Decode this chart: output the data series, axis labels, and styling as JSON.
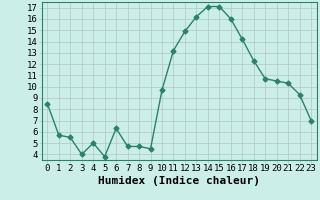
{
  "x": [
    0,
    1,
    2,
    3,
    4,
    5,
    6,
    7,
    8,
    9,
    10,
    11,
    12,
    13,
    14,
    15,
    16,
    17,
    18,
    19,
    20,
    21,
    22,
    23
  ],
  "y": [
    8.5,
    5.7,
    5.5,
    4.0,
    5.0,
    3.8,
    6.3,
    4.7,
    4.7,
    4.5,
    9.7,
    13.2,
    14.9,
    16.2,
    17.1,
    17.1,
    16.0,
    14.2,
    12.3,
    10.7,
    10.5,
    10.3,
    9.3,
    7.0
  ],
  "xlabel": "Humidex (Indice chaleur)",
  "ylim": [
    3.5,
    17.5
  ],
  "xlim": [
    -0.5,
    23.5
  ],
  "yticks": [
    4,
    5,
    6,
    7,
    8,
    9,
    10,
    11,
    12,
    13,
    14,
    15,
    16,
    17
  ],
  "xticks": [
    0,
    1,
    2,
    3,
    4,
    5,
    6,
    7,
    8,
    9,
    10,
    11,
    12,
    13,
    14,
    15,
    16,
    17,
    18,
    19,
    20,
    21,
    22,
    23
  ],
  "line_color": "#2d7f6e",
  "marker": "D",
  "marker_size": 2.5,
  "bg_color": "#cceee8",
  "grid_color": "#b0c8c4",
  "fig_bg": "#cceee8",
  "xlabel_fontsize": 8,
  "tick_fontsize": 6.5,
  "line_width": 1.0
}
